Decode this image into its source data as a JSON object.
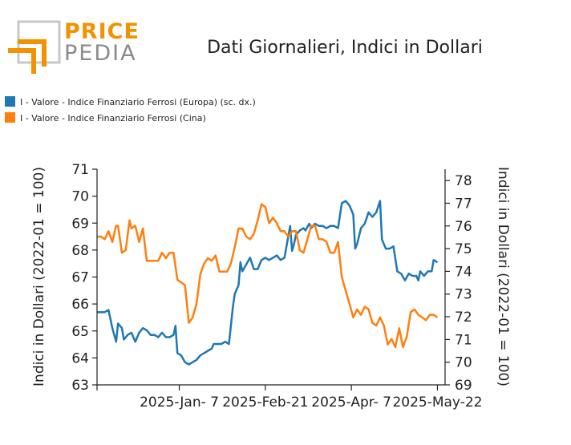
{
  "logo": {
    "line1": "PRICE",
    "line2": "PEDIA"
  },
  "colors": {
    "europe": "#1f77b4",
    "china": "#ff7f0e",
    "axis": "#222222",
    "logo_orange": "#f39200",
    "logo_gray": "#8a8a8a"
  },
  "chart_data": {
    "type": "line",
    "title": "Dati Giornalieri, Indici in Dollari",
    "legend_position": "top-left",
    "grid": false,
    "ylabel_left": "Indici in Dollari (2022-01 = 100)",
    "ylabel_right": "Indici in Dollari (2022-01 = 100)",
    "ylim_left": [
      63,
      71
    ],
    "ylim_right": [
      69,
      78.5
    ],
    "yticks_left": [
      "63",
      "64",
      "65",
      "66",
      "67",
      "68",
      "69",
      "70",
      "71"
    ],
    "yticks_right": [
      "69",
      "70",
      "71",
      "72",
      "73",
      "74",
      "75",
      "76",
      "77",
      "78"
    ],
    "x_ticks": [
      {
        "date": "2024-11-25",
        "label": ""
      },
      {
        "date": "2025-01-07",
        "label": "2025-Jan- 7"
      },
      {
        "date": "2025-02-21",
        "label": "2025-Feb-21"
      },
      {
        "date": "2025-04-07",
        "label": "2025-Apr- 7"
      },
      {
        "date": "2025-05-22",
        "label": "2025-May-22"
      }
    ],
    "xlim": [
      "2024-11-25",
      "2025-05-26"
    ],
    "series": [
      {
        "name": "I - Valore - Indice Finanziario Ferrosi (Europa) (sc. dx.)",
        "axis": "right",
        "points": [
          [
            "2024-11-25",
            72.2
          ],
          [
            "2024-11-27",
            72.2
          ],
          [
            "2024-11-29",
            72.2
          ],
          [
            "2024-12-01",
            72.3
          ],
          [
            "2024-12-03",
            71.5
          ],
          [
            "2024-12-05",
            70.9
          ],
          [
            "2024-12-06",
            71.7
          ],
          [
            "2024-12-08",
            71.5
          ],
          [
            "2024-12-09",
            71.0
          ],
          [
            "2024-12-11",
            71.2
          ],
          [
            "2024-12-13",
            71.3
          ],
          [
            "2024-12-15",
            70.9
          ],
          [
            "2024-12-17",
            71.3
          ],
          [
            "2024-12-19",
            71.5
          ],
          [
            "2024-12-21",
            71.4
          ],
          [
            "2024-12-23",
            71.2
          ],
          [
            "2024-12-25",
            71.2
          ],
          [
            "2024-12-27",
            71.1
          ],
          [
            "2024-12-29",
            71.3
          ],
          [
            "2024-12-31",
            71.1
          ],
          [
            "2025-01-02",
            71.1
          ],
          [
            "2025-01-04",
            71.2
          ],
          [
            "2025-01-05",
            71.6
          ],
          [
            "2025-01-06",
            70.4
          ],
          [
            "2025-01-08",
            70.3
          ],
          [
            "2025-01-10",
            70.0
          ],
          [
            "2025-01-12",
            69.9
          ],
          [
            "2025-01-14",
            70.0
          ],
          [
            "2025-01-16",
            70.1
          ],
          [
            "2025-01-18",
            70.3
          ],
          [
            "2025-01-20",
            70.4
          ],
          [
            "2025-01-22",
            70.5
          ],
          [
            "2025-01-24",
            70.6
          ],
          [
            "2025-01-25",
            70.8
          ],
          [
            "2025-01-27",
            70.8
          ],
          [
            "2025-01-29",
            70.8
          ],
          [
            "2025-01-31",
            70.9
          ],
          [
            "2025-02-02",
            70.8
          ],
          [
            "2025-02-04",
            72.4
          ],
          [
            "2025-02-05",
            73.0
          ],
          [
            "2025-02-07",
            73.4
          ],
          [
            "2025-02-08",
            74.4
          ],
          [
            "2025-02-09",
            74.0
          ],
          [
            "2025-02-11",
            74.3
          ],
          [
            "2025-02-13",
            74.6
          ],
          [
            "2025-02-15",
            74.1
          ],
          [
            "2025-02-17",
            74.1
          ],
          [
            "2025-02-19",
            74.5
          ],
          [
            "2025-02-21",
            74.6
          ],
          [
            "2025-02-23",
            74.5
          ],
          [
            "2025-02-25",
            74.6
          ],
          [
            "2025-02-27",
            74.7
          ],
          [
            "2025-03-01",
            74.5
          ],
          [
            "2025-03-03",
            74.6
          ],
          [
            "2025-03-06",
            76.0
          ],
          [
            "2025-03-07",
            74.9
          ],
          [
            "2025-03-08",
            75.2
          ],
          [
            "2025-03-09",
            75.6
          ],
          [
            "2025-03-11",
            75.8
          ],
          [
            "2025-03-13",
            75.9
          ],
          [
            "2025-03-14",
            75.8
          ],
          [
            "2025-03-16",
            76.1
          ],
          [
            "2025-03-17",
            75.9
          ],
          [
            "2025-03-19",
            76.1
          ],
          [
            "2025-03-21",
            76.0
          ],
          [
            "2025-03-23",
            76.0
          ],
          [
            "2025-03-25",
            75.9
          ],
          [
            "2025-03-27",
            76.0
          ],
          [
            "2025-03-29",
            76.0
          ],
          [
            "2025-03-31",
            75.9
          ],
          [
            "2025-04-02",
            77.0
          ],
          [
            "2025-04-04",
            77.1
          ],
          [
            "2025-04-06",
            76.9
          ],
          [
            "2025-04-08",
            76.5
          ],
          [
            "2025-04-09",
            75.0
          ],
          [
            "2025-04-10",
            75.2
          ],
          [
            "2025-04-12",
            75.9
          ],
          [
            "2025-04-14",
            76.1
          ],
          [
            "2025-04-16",
            76.6
          ],
          [
            "2025-04-18",
            76.4
          ],
          [
            "2025-04-20",
            76.6
          ],
          [
            "2025-04-22",
            77.1
          ],
          [
            "2025-04-23",
            75.4
          ],
          [
            "2025-04-25",
            75.0
          ],
          [
            "2025-04-27",
            75.0
          ],
          [
            "2025-04-29",
            75.1
          ],
          [
            "2025-05-01",
            74.0
          ],
          [
            "2025-05-03",
            73.9
          ],
          [
            "2025-05-05",
            73.6
          ],
          [
            "2025-05-07",
            73.9
          ],
          [
            "2025-05-09",
            73.8
          ],
          [
            "2025-05-11",
            73.8
          ],
          [
            "2025-05-12",
            73.6
          ],
          [
            "2025-05-13",
            74.0
          ],
          [
            "2025-05-15",
            73.8
          ],
          [
            "2025-05-17",
            74.0
          ],
          [
            "2025-05-19",
            74.0
          ],
          [
            "2025-05-20",
            74.5
          ],
          [
            "2025-05-22",
            74.4
          ]
        ]
      },
      {
        "name": "I - Valore - Indice Finanziario Ferrosi (Cina)",
        "axis": "left",
        "points": [
          [
            "2024-11-25",
            68.5
          ],
          [
            "2024-11-27",
            68.5
          ],
          [
            "2024-11-29",
            68.4
          ],
          [
            "2024-12-01",
            68.7
          ],
          [
            "2024-12-03",
            68.3
          ],
          [
            "2024-12-05",
            68.9
          ],
          [
            "2024-12-06",
            68.9
          ],
          [
            "2024-12-08",
            67.9
          ],
          [
            "2024-12-10",
            68.0
          ],
          [
            "2024-12-12",
            69.1
          ],
          [
            "2024-12-13",
            68.8
          ],
          [
            "2024-12-15",
            68.9
          ],
          [
            "2024-12-17",
            68.3
          ],
          [
            "2024-12-19",
            68.8
          ],
          [
            "2024-12-21",
            67.6
          ],
          [
            "2024-12-23",
            67.6
          ],
          [
            "2024-12-25",
            67.6
          ],
          [
            "2024-12-27",
            67.6
          ],
          [
            "2024-12-29",
            67.9
          ],
          [
            "2024-12-31",
            67.7
          ],
          [
            "2025-01-02",
            67.9
          ],
          [
            "2025-01-04",
            67.9
          ],
          [
            "2025-01-06",
            66.9
          ],
          [
            "2025-01-08",
            66.8
          ],
          [
            "2025-01-10",
            66.7
          ],
          [
            "2025-01-12",
            65.3
          ],
          [
            "2025-01-14",
            65.5
          ],
          [
            "2025-01-16",
            66.0
          ],
          [
            "2025-01-18",
            67.1
          ],
          [
            "2025-01-20",
            67.5
          ],
          [
            "2025-01-22",
            67.7
          ],
          [
            "2025-01-24",
            67.6
          ],
          [
            "2025-01-26",
            67.8
          ],
          [
            "2025-01-28",
            67.2
          ],
          [
            "2025-01-30",
            67.2
          ],
          [
            "2025-02-01",
            67.2
          ],
          [
            "2025-02-03",
            67.5
          ],
          [
            "2025-02-05",
            68.1
          ],
          [
            "2025-02-07",
            68.8
          ],
          [
            "2025-02-09",
            68.8
          ],
          [
            "2025-02-11",
            68.5
          ],
          [
            "2025-02-13",
            68.4
          ],
          [
            "2025-02-15",
            68.6
          ],
          [
            "2025-02-17",
            69.1
          ],
          [
            "2025-02-19",
            69.7
          ],
          [
            "2025-02-21",
            69.6
          ],
          [
            "2025-02-23",
            69.0
          ],
          [
            "2025-02-25",
            69.2
          ],
          [
            "2025-02-27",
            69.0
          ],
          [
            "2025-03-01",
            68.7
          ],
          [
            "2025-03-03",
            68.7
          ],
          [
            "2025-03-05",
            68.5
          ],
          [
            "2025-03-07",
            68.7
          ],
          [
            "2025-03-09",
            68.7
          ],
          [
            "2025-03-11",
            68.0
          ],
          [
            "2025-03-13",
            67.9
          ],
          [
            "2025-03-15",
            68.4
          ],
          [
            "2025-03-17",
            68.9
          ],
          [
            "2025-03-19",
            68.9
          ],
          [
            "2025-03-21",
            68.4
          ],
          [
            "2025-03-23",
            68.4
          ],
          [
            "2025-03-25",
            68.3
          ],
          [
            "2025-03-27",
            67.9
          ],
          [
            "2025-03-29",
            67.9
          ],
          [
            "2025-03-31",
            68.3
          ],
          [
            "2025-04-02",
            67.0
          ],
          [
            "2025-04-04",
            66.5
          ],
          [
            "2025-04-06",
            66.0
          ],
          [
            "2025-04-08",
            65.5
          ],
          [
            "2025-04-10",
            65.8
          ],
          [
            "2025-04-12",
            65.6
          ],
          [
            "2025-04-14",
            65.9
          ],
          [
            "2025-04-16",
            65.8
          ],
          [
            "2025-04-18",
            65.3
          ],
          [
            "2025-04-20",
            65.2
          ],
          [
            "2025-04-22",
            65.5
          ],
          [
            "2025-04-24",
            65.2
          ],
          [
            "2025-04-26",
            64.5
          ],
          [
            "2025-04-28",
            64.7
          ],
          [
            "2025-04-30",
            64.4
          ],
          [
            "2025-05-02",
            65.1
          ],
          [
            "2025-05-04",
            64.4
          ],
          [
            "2025-05-06",
            64.8
          ],
          [
            "2025-05-08",
            65.7
          ],
          [
            "2025-05-10",
            65.8
          ],
          [
            "2025-05-12",
            65.6
          ],
          [
            "2025-05-14",
            65.5
          ],
          [
            "2025-05-16",
            65.4
          ],
          [
            "2025-05-18",
            65.6
          ],
          [
            "2025-05-20",
            65.6
          ],
          [
            "2025-05-22",
            65.5
          ]
        ]
      }
    ]
  }
}
